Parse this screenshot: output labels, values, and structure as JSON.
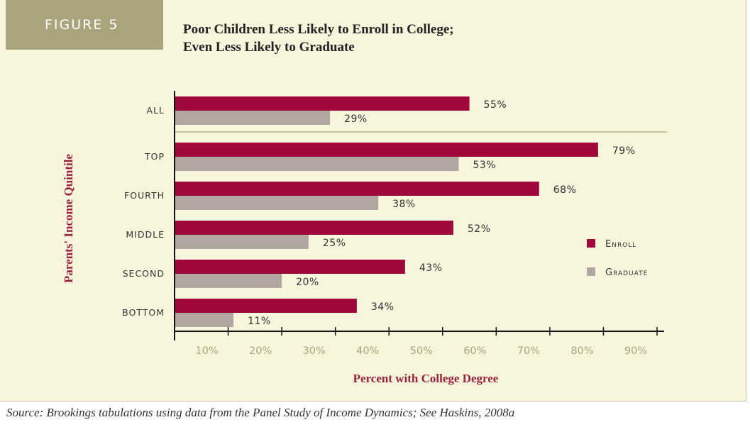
{
  "figure": {
    "badge": "FIGURE 5",
    "title_lines": [
      "Poor Children Less Likely to Enroll in College;",
      "Even Less Likely to Graduate"
    ],
    "source": "Source: Brookings tabulations using data from the Panel Study of Income Dynamics; See Haskins, 2008a"
  },
  "colors": {
    "enroll": "#a0073b",
    "graduate": "#b2a7a0",
    "panel": "#f7f5dc",
    "badge": "#aaa47c",
    "axis_title": "#9c1f3c"
  },
  "chart_data": {
    "type": "bar",
    "orientation": "horizontal",
    "title": "Poor Children Less Likely to Enroll in College; Even Less Likely to Graduate",
    "xlabel": "Percent with College Degree",
    "ylabel": "Parents' Income Quintile",
    "categories": [
      "ALL",
      "TOP",
      "FOURTH",
      "MIDDLE",
      "SECOND",
      "BOTTOM"
    ],
    "series": [
      {
        "name": "Enroll",
        "values": [
          55,
          79,
          68,
          52,
          43,
          34
        ],
        "labels": [
          "55%",
          "79%",
          "68%",
          "52%",
          "43%",
          "34%"
        ]
      },
      {
        "name": "Graduate",
        "values": [
          29,
          53,
          38,
          25,
          20,
          11
        ],
        "labels": [
          "29%",
          "53%",
          "38%",
          "25%",
          "20%",
          "11%"
        ]
      }
    ],
    "xlim": [
      0,
      90
    ],
    "xticks": [
      10,
      20,
      30,
      40,
      50,
      60,
      70,
      80,
      90
    ],
    "xtick_labels": [
      "10%",
      "20%",
      "30%",
      "40%",
      "50%",
      "60%",
      "70%",
      "80%",
      "90%"
    ],
    "grid": false,
    "legend_position": "right",
    "legend": [
      "Enroll",
      "Graduate"
    ]
  }
}
